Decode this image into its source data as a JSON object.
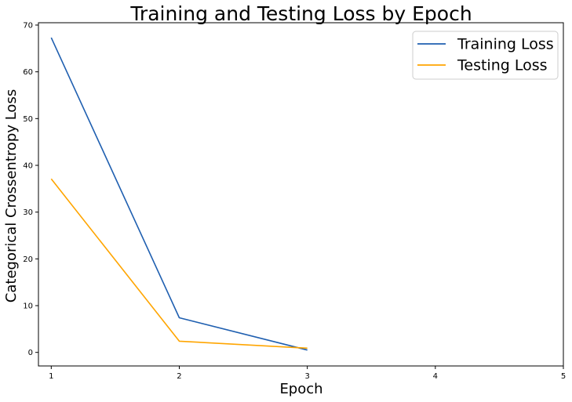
{
  "chart_data": {
    "type": "line",
    "title": "Training and Testing Loss by Epoch",
    "xlabel": "Epoch",
    "ylabel": "Categorical Crossentropy Loss",
    "x": [
      1,
      2,
      3
    ],
    "xlim": [
      0.9,
      5.0
    ],
    "ylim": [
      -2.9,
      70.5
    ],
    "xticks": [
      1,
      2,
      3,
      4,
      5
    ],
    "yticks": [
      0,
      10,
      20,
      30,
      40,
      50,
      60,
      70
    ],
    "grid": false,
    "legend_position": "top-right",
    "series": [
      {
        "name": "Training Loss",
        "color": "#1f5fb0",
        "values": [
          67.3,
          7.4,
          0.5
        ]
      },
      {
        "name": "Testing Loss",
        "color": "#ffa500",
        "values": [
          37.1,
          2.4,
          0.9
        ]
      }
    ]
  }
}
